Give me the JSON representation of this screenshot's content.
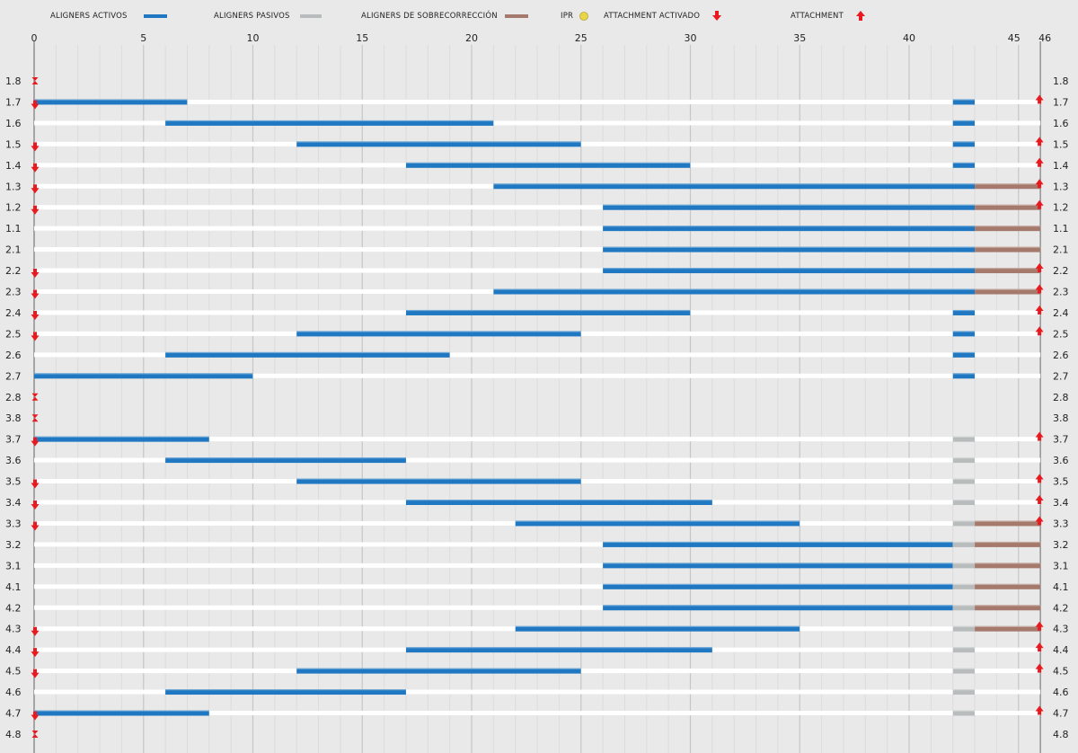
{
  "legend": {
    "active": "ALIGNERS ACTIVOS",
    "passive": "ALIGNERS PASIVOS",
    "overcorrection": "ALIGNERS DE SOBRECORRECCIÓN",
    "ipr": "IPR",
    "attachment_activated": "ATTACHMENT ACTIVADO",
    "attachment": "ATTACHMENT"
  },
  "colors": {
    "active": "#1f78c1",
    "passive": "#b8bcbd",
    "overcorrection": "#a57a6c",
    "attachment": "#e8191f",
    "ipr": "#e8d64a",
    "row_line": "#ffffff",
    "background": "#e9e9e9"
  },
  "chart_data": {
    "type": "gantt",
    "title": "",
    "xlabel": "",
    "ylabel": "",
    "xlim": [
      0,
      46
    ],
    "x_ticks": [
      0,
      5,
      10,
      15,
      20,
      25,
      30,
      35,
      40,
      45,
      46
    ],
    "grid": "vertical",
    "legend_position": "top",
    "rows": [
      {
        "tooth": "1.8",
        "active": null,
        "passive": null,
        "overcorrection": null,
        "ipr_start": true,
        "activated": false,
        "attachment": false
      },
      {
        "tooth": "1.7",
        "active": [
          0,
          7
        ],
        "passive": null,
        "overcorrection": null,
        "blue_end": [
          42,
          43
        ],
        "activated": true,
        "attachment": true
      },
      {
        "tooth": "1.6",
        "active": [
          6,
          21
        ],
        "passive": null,
        "overcorrection": null,
        "blue_end": [
          42,
          43
        ],
        "activated": false,
        "attachment": false
      },
      {
        "tooth": "1.5",
        "active": [
          12,
          25
        ],
        "passive": null,
        "overcorrection": null,
        "blue_end": [
          42,
          43
        ],
        "activated": true,
        "attachment": true
      },
      {
        "tooth": "1.4",
        "active": [
          17,
          30
        ],
        "passive": null,
        "overcorrection": null,
        "blue_end": [
          42,
          43
        ],
        "activated": true,
        "attachment": true
      },
      {
        "tooth": "1.3",
        "active": [
          21,
          43
        ],
        "passive": null,
        "overcorrection": [
          43,
          46
        ],
        "activated": true,
        "attachment": true
      },
      {
        "tooth": "1.2",
        "active": [
          26,
          43
        ],
        "passive": null,
        "overcorrection": [
          43,
          46
        ],
        "activated": true,
        "attachment": true
      },
      {
        "tooth": "1.1",
        "active": [
          26,
          43
        ],
        "passive": null,
        "overcorrection": [
          43,
          46
        ],
        "activated": false,
        "attachment": false
      },
      {
        "tooth": "2.1",
        "active": [
          26,
          43
        ],
        "passive": null,
        "overcorrection": [
          43,
          46
        ],
        "activated": false,
        "attachment": false
      },
      {
        "tooth": "2.2",
        "active": [
          26,
          43
        ],
        "passive": null,
        "overcorrection": [
          43,
          46
        ],
        "activated": true,
        "attachment": true
      },
      {
        "tooth": "2.3",
        "active": [
          21,
          43
        ],
        "passive": null,
        "overcorrection": [
          43,
          46
        ],
        "activated": true,
        "attachment": true
      },
      {
        "tooth": "2.4",
        "active": [
          17,
          30
        ],
        "passive": null,
        "overcorrection": null,
        "blue_end": [
          42,
          43
        ],
        "activated": true,
        "attachment": true
      },
      {
        "tooth": "2.5",
        "active": [
          12,
          25
        ],
        "passive": null,
        "overcorrection": null,
        "blue_end": [
          42,
          43
        ],
        "activated": true,
        "attachment": true
      },
      {
        "tooth": "2.6",
        "active": [
          6,
          19
        ],
        "passive": null,
        "overcorrection": null,
        "blue_end": [
          42,
          43
        ],
        "activated": false,
        "attachment": false
      },
      {
        "tooth": "2.7",
        "active": [
          0,
          10
        ],
        "passive": null,
        "overcorrection": null,
        "blue_end": [
          42,
          43
        ],
        "activated": false,
        "attachment": false
      },
      {
        "tooth": "2.8",
        "active": null,
        "passive": null,
        "overcorrection": null,
        "ipr_start": true,
        "activated": false,
        "attachment": false
      },
      {
        "tooth": "3.8",
        "active": null,
        "passive": null,
        "overcorrection": null,
        "ipr_start": true,
        "activated": false,
        "attachment": false
      },
      {
        "tooth": "3.7",
        "active": [
          0,
          8
        ],
        "passive": [
          42,
          43
        ],
        "overcorrection": null,
        "activated": true,
        "attachment": true
      },
      {
        "tooth": "3.6",
        "active": [
          6,
          17
        ],
        "passive": [
          42,
          43
        ],
        "overcorrection": null,
        "activated": false,
        "attachment": false
      },
      {
        "tooth": "3.5",
        "active": [
          12,
          25
        ],
        "passive": [
          42,
          43
        ],
        "overcorrection": null,
        "activated": true,
        "attachment": true
      },
      {
        "tooth": "3.4",
        "active": [
          17,
          31
        ],
        "passive": [
          42,
          43
        ],
        "overcorrection": null,
        "activated": true,
        "attachment": true
      },
      {
        "tooth": "3.3",
        "active": [
          22,
          35
        ],
        "passive": [
          42,
          43
        ],
        "overcorrection": [
          43,
          46
        ],
        "activated": true,
        "attachment": true
      },
      {
        "tooth": "3.2",
        "active": [
          26,
          42
        ],
        "passive": [
          42,
          43
        ],
        "overcorrection": [
          43,
          46
        ],
        "activated": false,
        "attachment": false
      },
      {
        "tooth": "3.1",
        "active": [
          26,
          42
        ],
        "passive": [
          42,
          43
        ],
        "overcorrection": [
          43,
          46
        ],
        "activated": false,
        "attachment": false
      },
      {
        "tooth": "4.1",
        "active": [
          26,
          42
        ],
        "passive": [
          42,
          43
        ],
        "overcorrection": [
          43,
          46
        ],
        "activated": false,
        "attachment": false
      },
      {
        "tooth": "4.2",
        "active": [
          26,
          42
        ],
        "passive": [
          42,
          43
        ],
        "overcorrection": [
          43,
          46
        ],
        "activated": false,
        "attachment": false
      },
      {
        "tooth": "4.3",
        "active": [
          22,
          35
        ],
        "passive": [
          42,
          43
        ],
        "overcorrection": [
          43,
          46
        ],
        "activated": true,
        "attachment": true
      },
      {
        "tooth": "4.4",
        "active": [
          17,
          31
        ],
        "passive": [
          42,
          43
        ],
        "overcorrection": null,
        "activated": true,
        "attachment": true
      },
      {
        "tooth": "4.5",
        "active": [
          12,
          25
        ],
        "passive": [
          42,
          43
        ],
        "overcorrection": null,
        "activated": true,
        "attachment": true
      },
      {
        "tooth": "4.6",
        "active": [
          6,
          17
        ],
        "passive": [
          42,
          43
        ],
        "overcorrection": null,
        "activated": false,
        "attachment": false
      },
      {
        "tooth": "4.7",
        "active": [
          0,
          8
        ],
        "passive": [
          42,
          43
        ],
        "overcorrection": null,
        "activated": true,
        "attachment": true
      },
      {
        "tooth": "4.8",
        "active": null,
        "passive": null,
        "overcorrection": null,
        "ipr_start": true,
        "activated": false,
        "attachment": false
      }
    ]
  }
}
